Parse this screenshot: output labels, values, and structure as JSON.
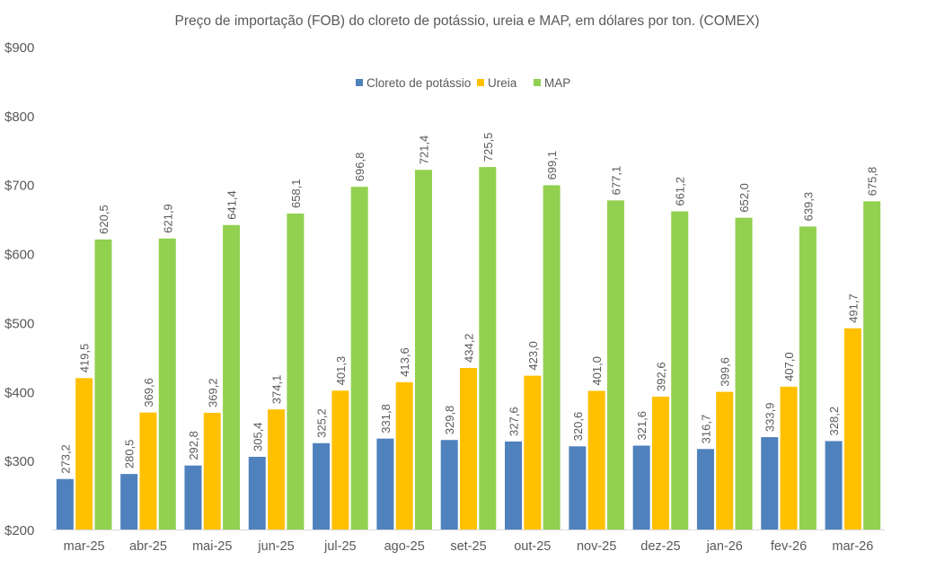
{
  "chart_data": {
    "type": "bar",
    "title": "Preço de importação (FOB) do cloreto de potássio, ureia e MAP, em dólares por ton. (COMEX)",
    "xlabel": "",
    "ylabel": "",
    "ylim": [
      200,
      900
    ],
    "yticks": [
      200,
      300,
      400,
      500,
      600,
      700,
      800,
      900
    ],
    "ytick_labels": [
      "$200",
      "$300",
      "$400",
      "$500",
      "$600",
      "$700",
      "$800",
      "$900"
    ],
    "grid": false,
    "legend_position": "top-center",
    "categories": [
      "mar-25",
      "abr-25",
      "mai-25",
      "jun-25",
      "jul-25",
      "ago-25",
      "set-25",
      "out-25",
      "nov-25",
      "dez-25",
      "jan-26",
      "fev-26",
      "mar-26"
    ],
    "series": [
      {
        "name": "Cloreto de potássio",
        "color": "#4F81BD",
        "values": [
          273.2,
          280.5,
          292.8,
          305.4,
          325.2,
          331.8,
          329.8,
          327.6,
          320.6,
          321.6,
          316.7,
          333.9,
          328.2
        ]
      },
      {
        "name": "Ureia",
        "color": "#FFC000",
        "values": [
          419.5,
          369.6,
          369.2,
          374.1,
          401.3,
          413.6,
          434.2,
          423.0,
          401.0,
          392.6,
          399.6,
          407.0,
          491.7
        ]
      },
      {
        "name": "MAP",
        "color": "#92D050",
        "values": [
          620.5,
          621.9,
          641.4,
          658.1,
          696.8,
          721.4,
          725.5,
          699.1,
          677.1,
          661.2,
          652.0,
          639.3,
          675.8
        ]
      }
    ]
  }
}
